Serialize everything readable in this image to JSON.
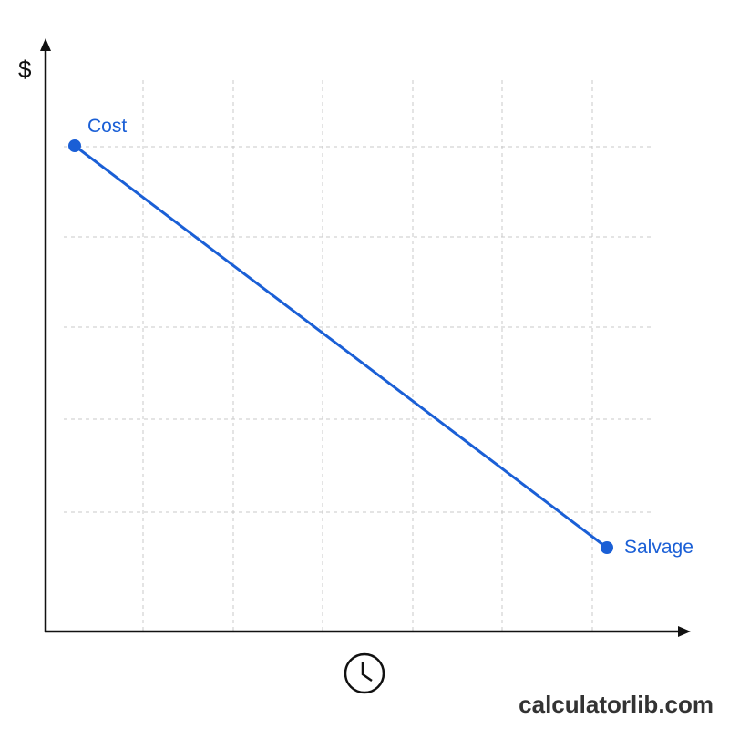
{
  "axis": {
    "y_label": "$"
  },
  "points": [
    {
      "label": "Cost"
    },
    {
      "label": "Salvage"
    }
  ],
  "footer": {
    "brand": "calculatorlib.com"
  }
}
